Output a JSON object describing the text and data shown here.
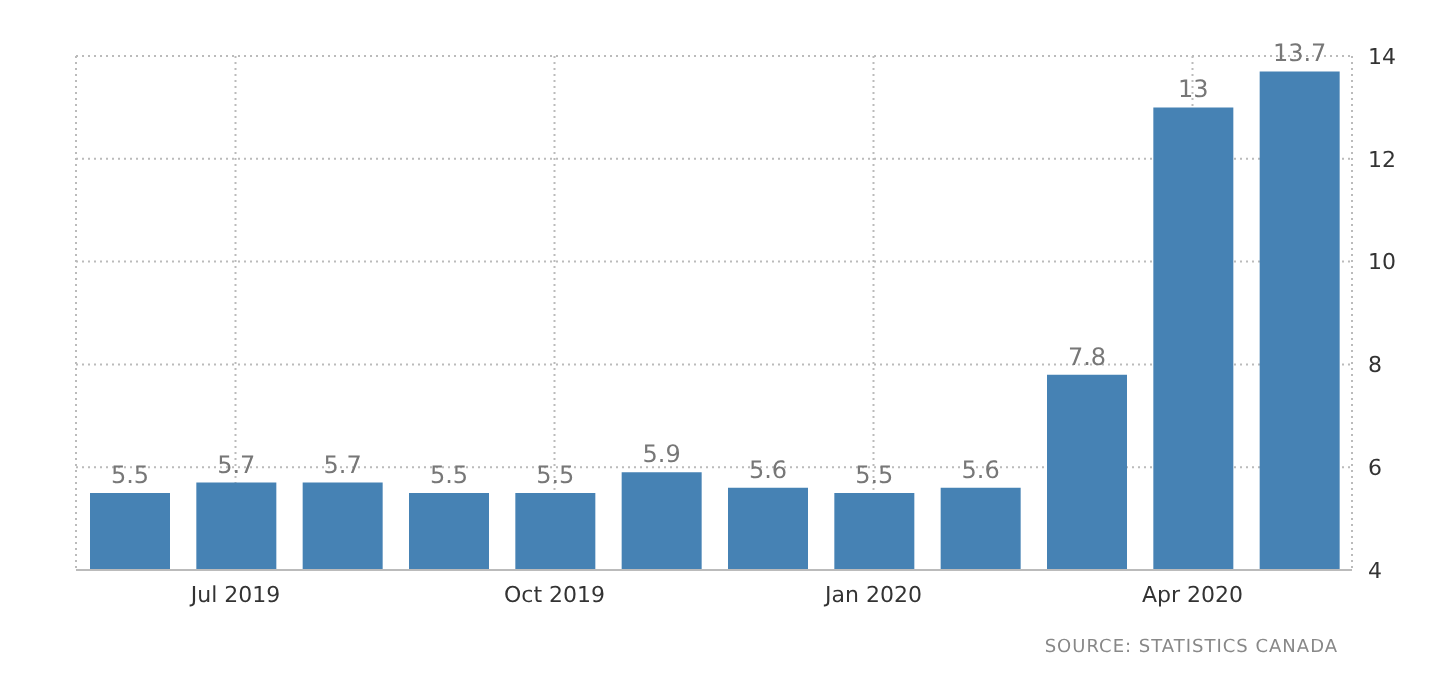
{
  "chart_data": {
    "type": "bar",
    "categories": [
      null,
      "Jul 2019",
      null,
      null,
      "Oct 2019",
      null,
      null,
      "Jan 2020",
      null,
      null,
      "Apr 2020",
      null
    ],
    "values": [
      5.5,
      5.7,
      5.7,
      5.5,
      5.5,
      5.9,
      5.6,
      5.5,
      5.6,
      7.8,
      13,
      13.7
    ],
    "color": "#4682b4",
    "ylim": [
      4,
      14
    ],
    "yticks": [
      4,
      6,
      8,
      10,
      12,
      14
    ],
    "grid": true,
    "data_labels": true,
    "annotations": [
      "SOURCE: STATISTICS CANADA"
    ]
  }
}
